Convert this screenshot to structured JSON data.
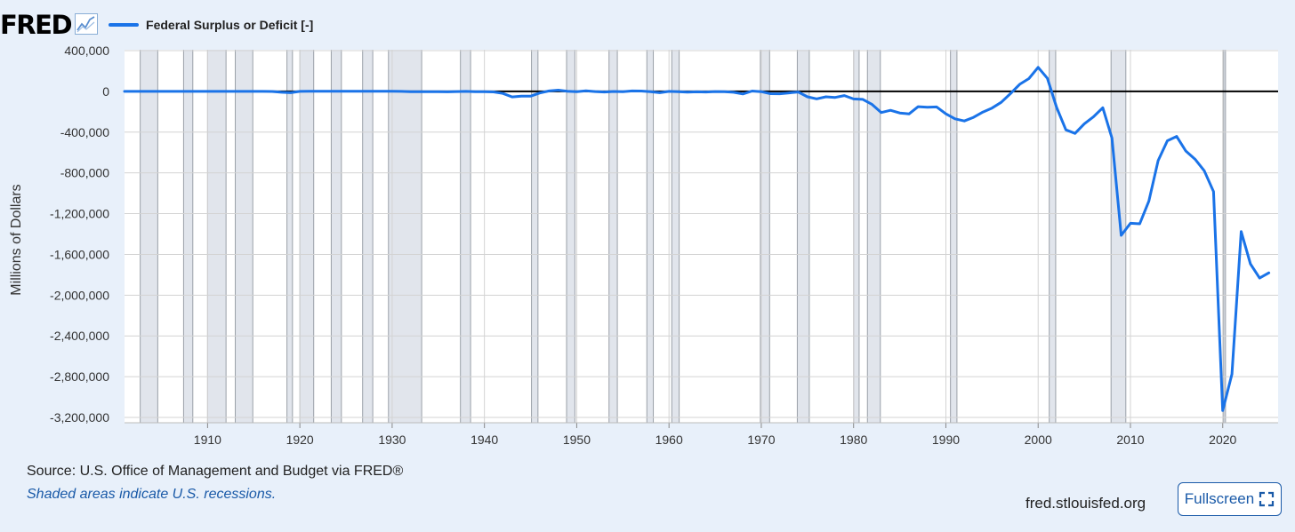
{
  "header": {
    "logo": "FRED",
    "legend_label": "Federal Surplus or Deficit [-]",
    "legend_color": "#1a73e8",
    "logo_icon": "line-chart-icon"
  },
  "chart_data": {
    "type": "line",
    "title": "",
    "xlabel": "",
    "ylabel": "Millions of Dollars",
    "xlim": [
      1901,
      2026
    ],
    "ylim": [
      -3300000,
      450000
    ],
    "x_ticks": [
      1910,
      1920,
      1930,
      1940,
      1950,
      1960,
      1970,
      1980,
      1990,
      2000,
      2010,
      2020
    ],
    "x_tick_labels": [
      "1910",
      "1920",
      "1930",
      "1940",
      "1950",
      "1960",
      "1970",
      "1980",
      "1990",
      "2000",
      "2010",
      "2020"
    ],
    "y_ticks": [
      400000,
      0,
      -400000,
      -800000,
      -1200000,
      -1600000,
      -2000000,
      -2400000,
      -2800000,
      -3200000
    ],
    "y_tick_labels": [
      "400,000",
      "0",
      "-400,000",
      "-800,000",
      "-1,200,000",
      "-1,600,000",
      "-2,000,000",
      "-2,400,000",
      "-2,800,000",
      "-3,200,000"
    ],
    "grid": true,
    "legend_position": "top-left",
    "series": [
      {
        "name": "Federal Surplus or Deficit [-]",
        "color": "#1a73e8",
        "points": [
          [
            1901,
            63
          ],
          [
            1902,
            77
          ],
          [
            1903,
            45
          ],
          [
            1904,
            -43
          ],
          [
            1905,
            -23
          ],
          [
            1906,
            25
          ],
          [
            1907,
            87
          ],
          [
            1908,
            -57
          ],
          [
            1909,
            -89
          ],
          [
            1910,
            -18
          ],
          [
            1911,
            11
          ],
          [
            1912,
            3
          ],
          [
            1913,
            0
          ],
          [
            1914,
            -0.4
          ],
          [
            1915,
            -63
          ],
          [
            1916,
            48
          ],
          [
            1917,
            -853
          ],
          [
            1918,
            -9032
          ],
          [
            1919,
            -13363
          ],
          [
            1920,
            291
          ],
          [
            1921,
            509
          ],
          [
            1922,
            736
          ],
          [
            1923,
            713
          ],
          [
            1924,
            963
          ],
          [
            1925,
            717
          ],
          [
            1926,
            865
          ],
          [
            1927,
            1155
          ],
          [
            1928,
            939
          ],
          [
            1929,
            734
          ],
          [
            1930,
            738
          ],
          [
            1931,
            -462
          ],
          [
            1932,
            -2735
          ],
          [
            1933,
            -2602
          ],
          [
            1934,
            -3586
          ],
          [
            1935,
            -2803
          ],
          [
            1936,
            -4304
          ],
          [
            1937,
            -2193
          ],
          [
            1938,
            -89
          ],
          [
            1939,
            -2846
          ],
          [
            1940,
            -2920
          ],
          [
            1941,
            -4941
          ],
          [
            1942,
            -20503
          ],
          [
            1943,
            -54554
          ],
          [
            1944,
            -47557
          ],
          [
            1945,
            -47553
          ],
          [
            1946,
            -15936
          ],
          [
            1947,
            4018
          ],
          [
            1948,
            11796
          ],
          [
            1949,
            580
          ],
          [
            1950,
            -3119
          ],
          [
            1951,
            6102
          ],
          [
            1952,
            -1519
          ],
          [
            1953,
            -6493
          ],
          [
            1954,
            -1154
          ],
          [
            1955,
            -2993
          ],
          [
            1956,
            3947
          ],
          [
            1957,
            3412
          ],
          [
            1958,
            -2769
          ],
          [
            1959,
            -12849
          ],
          [
            1960,
            301
          ],
          [
            1961,
            -3335
          ],
          [
            1962,
            -7146
          ],
          [
            1963,
            -4756
          ],
          [
            1964,
            -5915
          ],
          [
            1965,
            -1411
          ],
          [
            1966,
            -3698
          ],
          [
            1967,
            -8643
          ],
          [
            1968,
            -25161
          ],
          [
            1969,
            3242
          ],
          [
            1970,
            -2842
          ],
          [
            1971,
            -23033
          ],
          [
            1972,
            -23373
          ],
          [
            1973,
            -14908
          ],
          [
            1974,
            -6135
          ],
          [
            1975,
            -53242
          ],
          [
            1976,
            -73732
          ],
          [
            1977,
            -53659
          ],
          [
            1978,
            -59185
          ],
          [
            1979,
            -40726
          ],
          [
            1980,
            -73830
          ],
          [
            1981,
            -78968
          ],
          [
            1982,
            -127977
          ],
          [
            1983,
            -207802
          ],
          [
            1984,
            -185367
          ],
          [
            1985,
            -212308
          ],
          [
            1986,
            -221227
          ],
          [
            1987,
            -149730
          ],
          [
            1988,
            -155178
          ],
          [
            1989,
            -152639
          ],
          [
            1990,
            -221036
          ],
          [
            1991,
            -269238
          ],
          [
            1992,
            -290321
          ],
          [
            1993,
            -255051
          ],
          [
            1994,
            -203186
          ],
          [
            1995,
            -163952
          ],
          [
            1996,
            -107431
          ],
          [
            1997,
            -21884
          ],
          [
            1998,
            69270
          ],
          [
            1999,
            125610
          ],
          [
            2000,
            236241
          ],
          [
            2001,
            128236
          ],
          [
            2002,
            -157758
          ],
          [
            2003,
            -377585
          ],
          [
            2004,
            -412727
          ],
          [
            2005,
            -318346
          ],
          [
            2006,
            -248181
          ],
          [
            2007,
            -160701
          ],
          [
            2008,
            -458553
          ],
          [
            2009,
            -1412688
          ],
          [
            2010,
            -1294373
          ],
          [
            2011,
            -1299599
          ],
          [
            2012,
            -1076573
          ],
          [
            2013,
            -679775
          ],
          [
            2014,
            -484602
          ],
          [
            2015,
            -441960
          ],
          [
            2016,
            -584651
          ],
          [
            2017,
            -665446
          ],
          [
            2018,
            -779137
          ],
          [
            2019,
            -983588
          ],
          [
            2020,
            -3131917
          ],
          [
            2021,
            -2775339
          ],
          [
            2022,
            -1375904
          ],
          [
            2023,
            -1693723
          ],
          [
            2024,
            -1832000
          ],
          [
            2025,
            -1781000
          ]
        ]
      }
    ],
    "recessions": [
      [
        1902.7,
        1904.6
      ],
      [
        1907.4,
        1908.4
      ],
      [
        1910.0,
        1912.0
      ],
      [
        1913.0,
        1914.9
      ],
      [
        1918.6,
        1919.2
      ],
      [
        1920.0,
        1921.5
      ],
      [
        1923.4,
        1924.5
      ],
      [
        1926.8,
        1927.9
      ],
      [
        1929.6,
        1933.2
      ],
      [
        1937.4,
        1938.5
      ],
      [
        1945.1,
        1945.8
      ],
      [
        1948.9,
        1949.8
      ],
      [
        1953.5,
        1954.4
      ],
      [
        1957.6,
        1958.3
      ],
      [
        1960.3,
        1961.1
      ],
      [
        1969.9,
        1970.9
      ],
      [
        1973.9,
        1975.2
      ],
      [
        1980.0,
        1980.6
      ],
      [
        1981.5,
        1982.9
      ],
      [
        1990.5,
        1991.2
      ],
      [
        2001.2,
        2001.9
      ],
      [
        2007.9,
        2009.5
      ],
      [
        2020.1,
        2020.3
      ]
    ],
    "zero_line": true
  },
  "footer": {
    "source": "Source: U.S. Office of Management and Budget via FRED®",
    "note": "Shaded areas indicate U.S. recessions.",
    "site": "fred.stlouisfed.org",
    "fullscreen_label": "Fullscreen",
    "fullscreen_icon": "fullscreen-icon"
  }
}
